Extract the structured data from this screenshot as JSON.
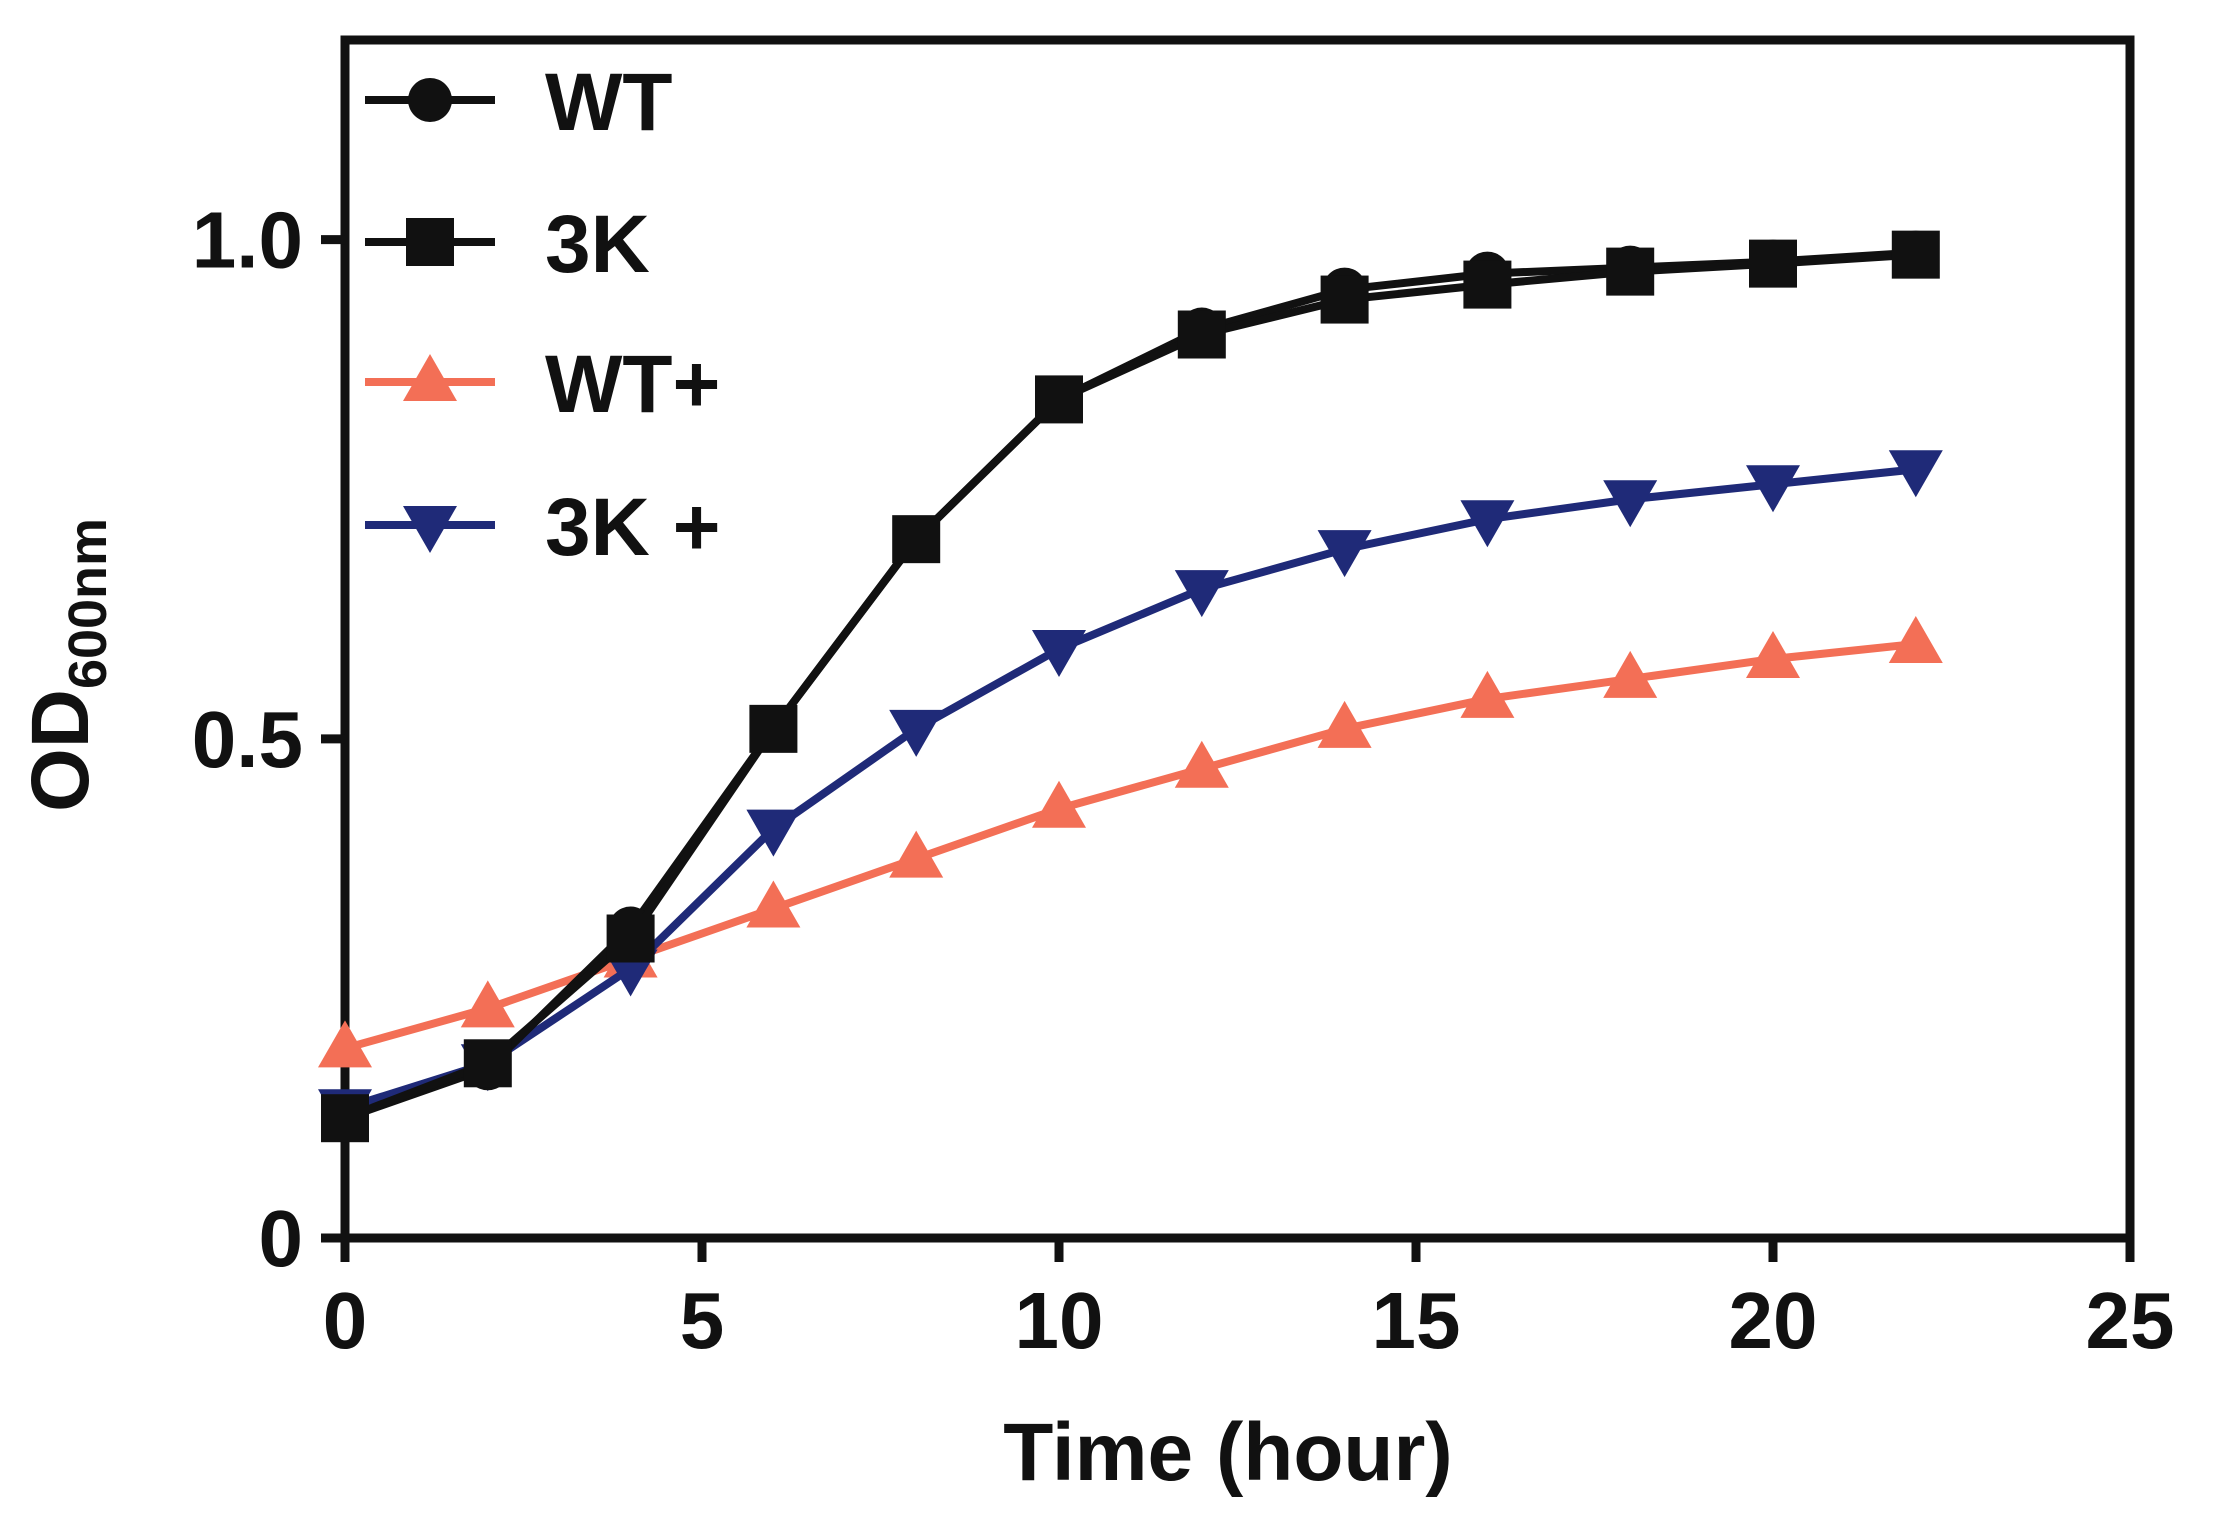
{
  "colors": {
    "axis": "#111111",
    "series": [
      "#111111",
      "#111111",
      "#f36f56",
      "#1f2a78"
    ]
  },
  "chart_data": {
    "type": "line",
    "title": "",
    "xlabel": "Time (hour)",
    "ylabel": "OD",
    "ylabel_subscript": "600nm",
    "xlim": [
      0,
      25
    ],
    "ylim": [
      0,
      1.2
    ],
    "xticks": [
      0,
      5,
      10,
      15,
      20,
      25
    ],
    "xtick_labels": [
      "0",
      "5",
      "10",
      "15",
      "20",
      "25"
    ],
    "yticks": [
      0,
      0.5,
      1.0
    ],
    "ytick_labels": [
      "0",
      "0.5",
      "1.0"
    ],
    "grid": false,
    "legend_position": "top-left",
    "x": [
      0,
      2,
      4,
      6,
      8,
      10,
      12,
      14,
      16,
      18,
      20,
      22
    ],
    "series": [
      {
        "name": "WT",
        "marker": "circle",
        "values": [
          0.12,
          0.17,
          0.31,
          0.51,
          0.7,
          0.84,
          0.91,
          0.95,
          0.966,
          0.972,
          0.978,
          0.987
        ]
      },
      {
        "name": "3K",
        "marker": "square",
        "values": [
          0.12,
          0.175,
          0.3,
          0.51,
          0.7,
          0.84,
          0.905,
          0.94,
          0.955,
          0.968,
          0.976,
          0.985
        ]
      },
      {
        "name": "WT+",
        "marker": "triangle-up",
        "values": [
          0.19,
          0.23,
          0.28,
          0.33,
          0.38,
          0.43,
          0.47,
          0.51,
          0.54,
          0.56,
          0.58,
          0.595
        ]
      },
      {
        "name": "3K +",
        "marker": "triangle-down",
        "values": [
          0.13,
          0.175,
          0.27,
          0.41,
          0.51,
          0.59,
          0.65,
          0.69,
          0.72,
          0.74,
          0.755,
          0.77
        ]
      }
    ]
  }
}
